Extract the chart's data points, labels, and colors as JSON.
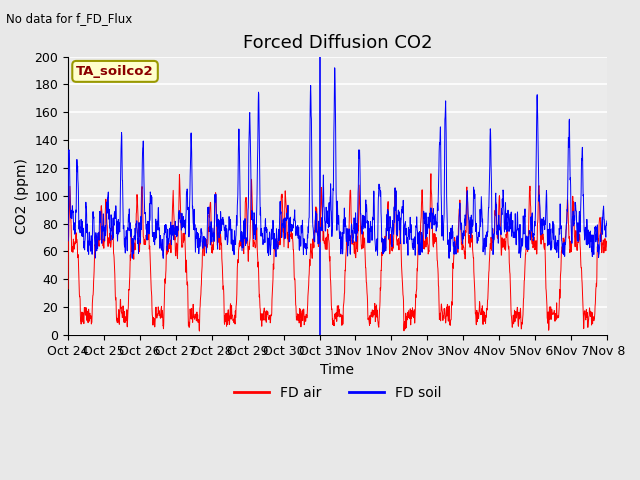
{
  "title": "Forced Diffusion CO2",
  "ylabel": "CO2 (ppm)",
  "xlabel": "Time",
  "top_left_text": "No data for f_FD_Flux",
  "box_label": "TA_soilco2",
  "ylim": [
    0,
    200
  ],
  "background_color": "#e8e8e8",
  "plot_bg_color": "#ebebeb",
  "xtick_labels": [
    "Oct 24",
    "Oct 25",
    "Oct 26",
    "Oct 27",
    "Oct 28",
    "Oct 29",
    "Oct 30",
    "Oct 31",
    "Nov 1",
    "Nov 2",
    "Nov 3",
    "Nov 4",
    "Nov 5",
    "Nov 6",
    "Nov 7",
    "Nov 8"
  ],
  "legend_entries": [
    "FD air",
    "FD soil"
  ],
  "red_color": "#ff0000",
  "blue_color": "#0000ff",
  "title_fontsize": 13,
  "axis_fontsize": 10,
  "tick_fontsize": 9,
  "yticks": [
    0,
    20,
    40,
    60,
    80,
    100,
    120,
    140,
    160,
    180,
    200
  ]
}
